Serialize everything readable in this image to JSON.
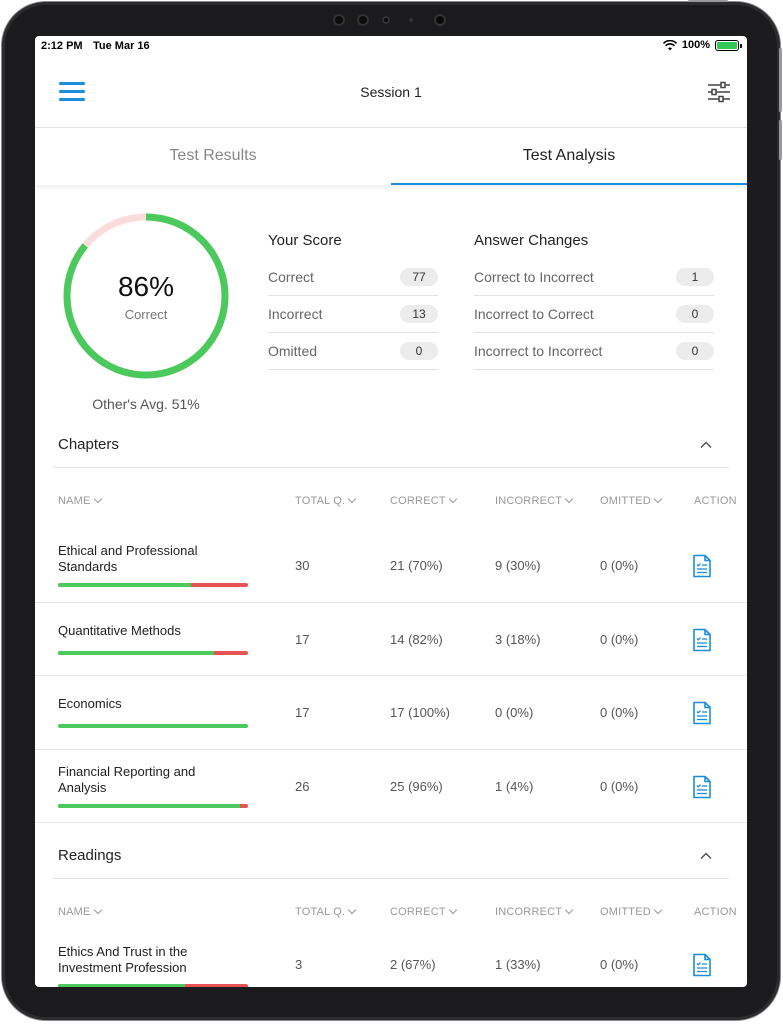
{
  "status_bar": {
    "time": "2:12 PM",
    "date": "Tue Mar 16",
    "battery": "100%"
  },
  "header": {
    "title": "Session 1"
  },
  "tabs": [
    {
      "label": "Test Results",
      "active": false
    },
    {
      "label": "Test Analysis",
      "active": true
    }
  ],
  "score": {
    "percent_label": "86%",
    "percent_value": 86,
    "caption": "Correct",
    "other_avg": "Other's Avg. 51%"
  },
  "your_score": {
    "title": "Your Score",
    "rows": [
      {
        "label": "Correct",
        "value": "77"
      },
      {
        "label": "Incorrect",
        "value": "13"
      },
      {
        "label": "Omitted",
        "value": "0"
      }
    ]
  },
  "answer_changes": {
    "title": "Answer Changes",
    "rows": [
      {
        "label": "Correct to Incorrect",
        "value": "1"
      },
      {
        "label": "Incorrect to Correct",
        "value": "0"
      },
      {
        "label": "Incorrect to Incorrect",
        "value": "0"
      }
    ]
  },
  "columns": {
    "name": "NAME",
    "total": "TOTAL Q.",
    "correct": "CORRECT",
    "incorrect": "INCORRECT",
    "omitted": "OMITTED",
    "action": "ACTION"
  },
  "chapters": {
    "title": "Chapters",
    "rows": [
      {
        "name": "Ethical and Professional Standards",
        "total": "30",
        "correct": "21 (70%)",
        "incorrect": "9 (30%)",
        "omitted": "0 (0%)",
        "correct_fraction": 0.7
      },
      {
        "name": "Quantitative Methods",
        "total": "17",
        "correct": "14 (82%)",
        "incorrect": "3 (18%)",
        "omitted": "0 (0%)",
        "correct_fraction": 0.82
      },
      {
        "name": "Economics",
        "total": "17",
        "correct": "17 (100%)",
        "incorrect": "0 (0%)",
        "omitted": "0 (0%)",
        "correct_fraction": 1.0
      },
      {
        "name": "Financial Reporting and Analysis",
        "total": "26",
        "correct": "25 (96%)",
        "incorrect": "1 (4%)",
        "omitted": "0 (0%)",
        "correct_fraction": 0.96
      }
    ]
  },
  "readings": {
    "title": "Readings",
    "rows": [
      {
        "name": "Ethics And Trust in the Investment Profession",
        "total": "3",
        "correct": "2 (67%)",
        "incorrect": "1 (33%)",
        "omitted": "0 (0%)",
        "correct_fraction": 0.67
      }
    ]
  },
  "colors": {
    "accent": "#1a8de0",
    "correct": "#4cc95c",
    "incorrect": "#e55353",
    "donut_remainder": "#fbdcdc"
  },
  "icons": [
    "menu-icon",
    "filter-sliders-icon",
    "chevron-up-icon",
    "chevron-down-icon",
    "document-icon",
    "wifi-icon",
    "battery-icon"
  ]
}
